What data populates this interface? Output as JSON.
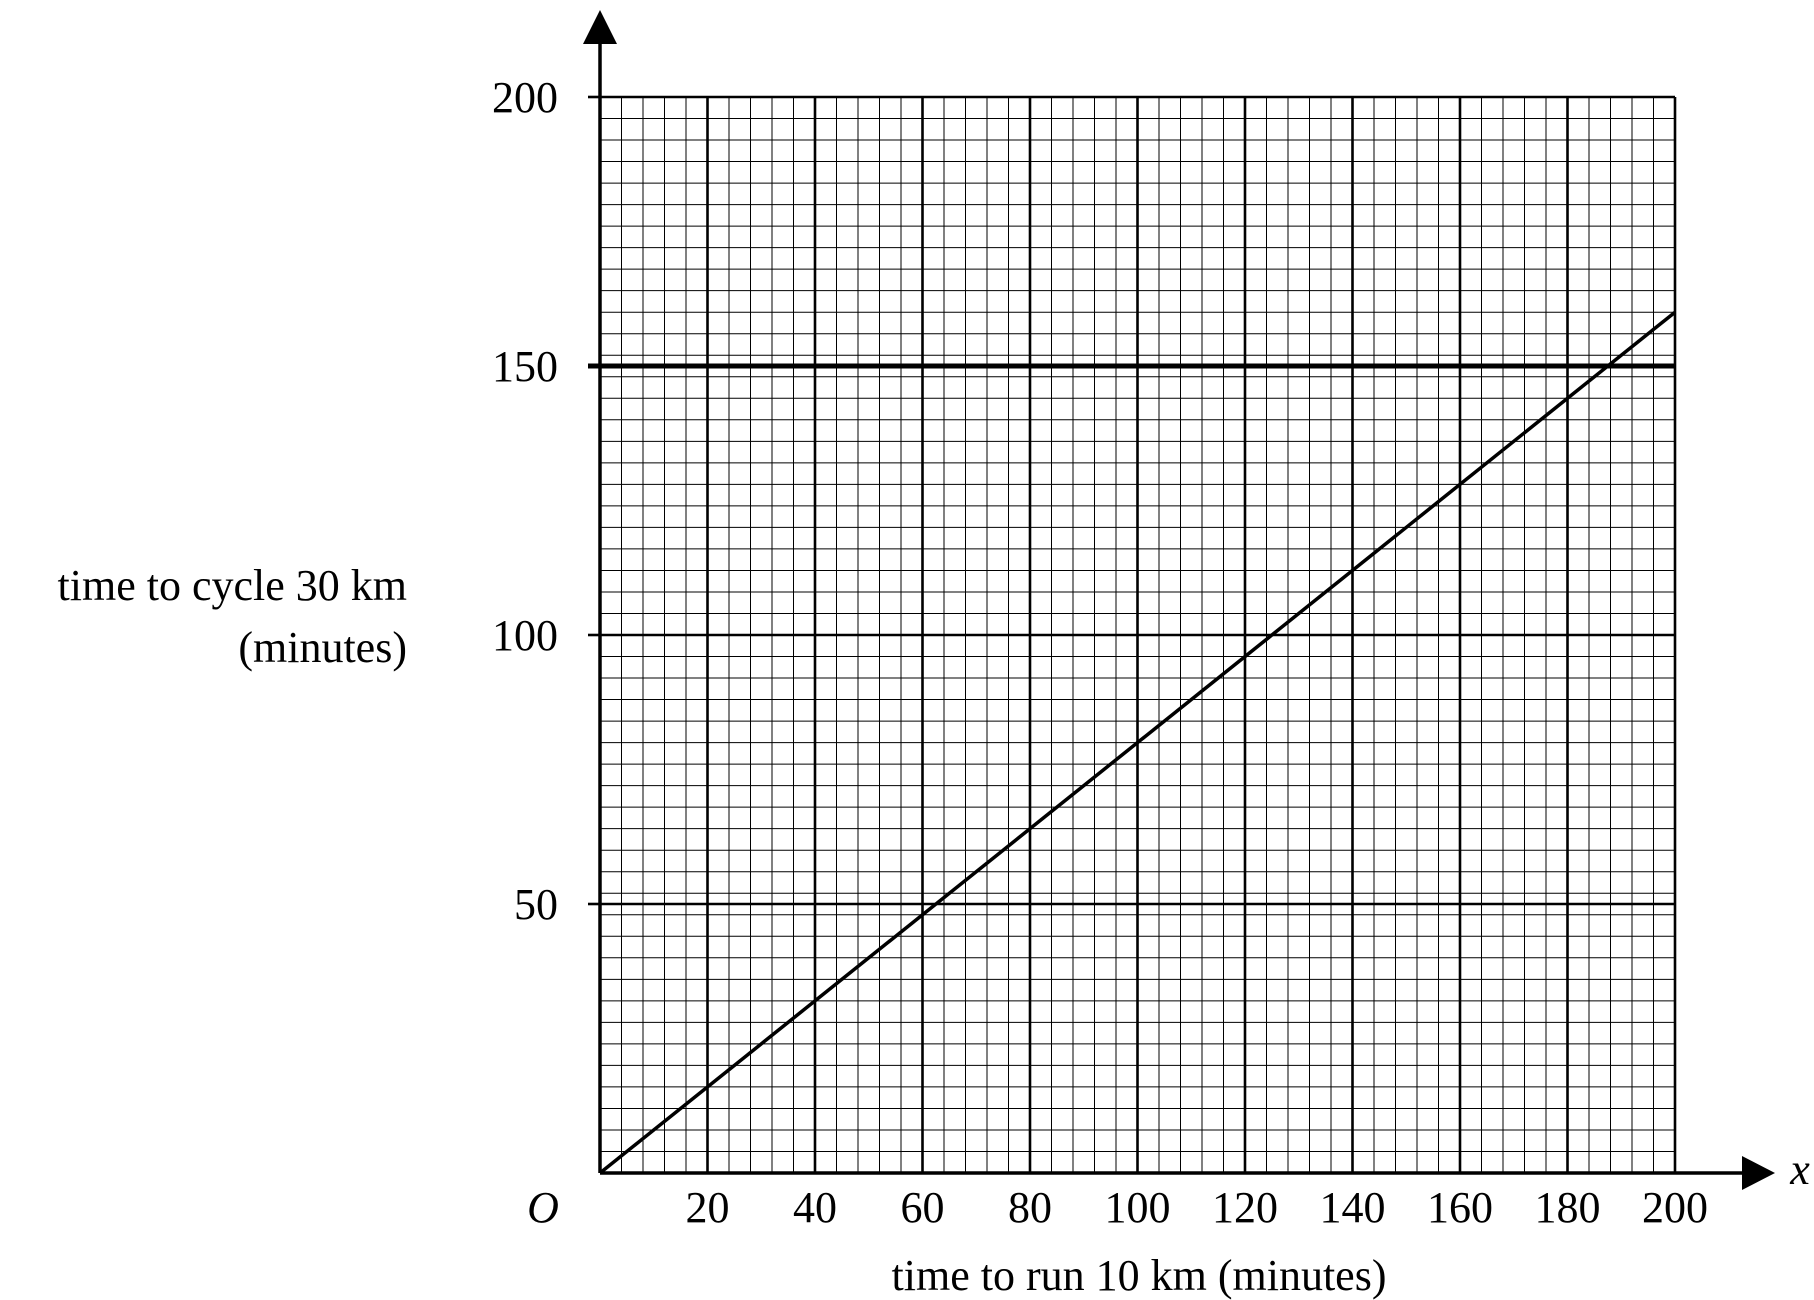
{
  "chart_data": {
    "type": "line",
    "title": "",
    "xlabel": "time to run 10 km (minutes)",
    "ylabel_lines": [
      "time to cycle 30 km",
      "(minutes)"
    ],
    "origin_label": "O",
    "x_axis_arrow_label": "x",
    "xlim": [
      0,
      200
    ],
    "ylim": [
      0,
      200
    ],
    "x_ticks": [
      20,
      40,
      60,
      80,
      100,
      120,
      140,
      160,
      180,
      200
    ],
    "x_tick_labels": [
      "20",
      "40",
      "60",
      "80",
      "100",
      "120",
      "140",
      "160",
      "180",
      "200"
    ],
    "y_ticks": [
      50,
      100,
      150,
      200
    ],
    "y_tick_labels": [
      "50",
      "100",
      "150",
      "200"
    ],
    "grid": true,
    "grid_minor_step": 4,
    "grid_major_x_step": 20,
    "grid_major_y_step": 50,
    "emphasized_horizontal_line": 150,
    "line_color": "#000000",
    "series": [
      {
        "x": [
          0,
          200
        ],
        "y": [
          0,
          160
        ]
      }
    ]
  }
}
